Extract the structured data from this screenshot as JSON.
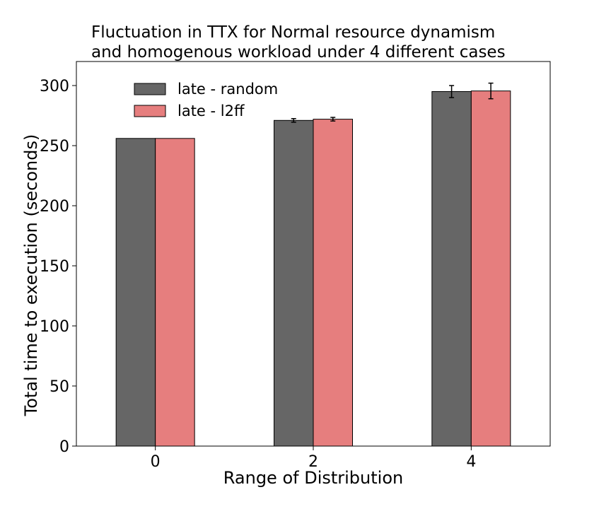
{
  "chart_data": {
    "type": "bar",
    "title_lines": [
      "Fluctuation in TTX for Normal resource dynamism",
      "and homogenous workload under 4 different cases"
    ],
    "xlabel": "Range of Distribution",
    "ylabel": "Total time to execution (seconds)",
    "categories": [
      "0",
      "2",
      "4"
    ],
    "ylim": [
      0,
      320
    ],
    "yticks": [
      0,
      50,
      100,
      150,
      200,
      250,
      300
    ],
    "legend_position": "top-left",
    "grid": false,
    "series": [
      {
        "name": "late - random",
        "color": "#666666",
        "values": [
          256,
          271,
          295
        ],
        "errors": [
          0,
          1.5,
          5
        ]
      },
      {
        "name": "late - l2ff",
        "color": "#e67e7e",
        "values": [
          256,
          272,
          295.5
        ],
        "errors": [
          0,
          1.5,
          6.5
        ]
      }
    ]
  }
}
